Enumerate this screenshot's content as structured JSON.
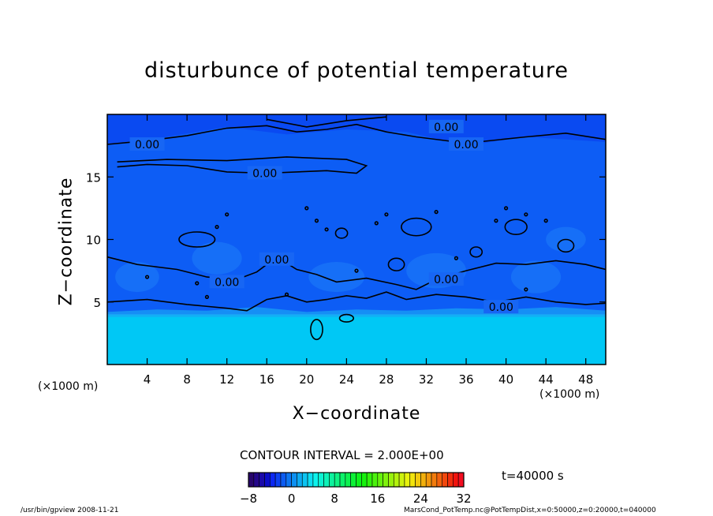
{
  "chart_data": {
    "type": "heatmap",
    "title": "disturbunce of potential temperature",
    "xlabel": "X−coordinate",
    "ylabel": "Z−coordinate",
    "x_unit": "(×1000 m)",
    "z_unit": "(×1000 m)",
    "xlim": [
      0,
      50
    ],
    "ylim": [
      0,
      20
    ],
    "x_ticks": [
      4,
      8,
      12,
      16,
      20,
      24,
      28,
      32,
      36,
      40,
      44,
      48
    ],
    "y_ticks": [
      5,
      10,
      15
    ],
    "contour_interval": "CONTOUR INTERVAL = 2.000E+00",
    "contour_labels": [
      "0.00",
      "0.00",
      "0.00",
      "0.00",
      "0.00",
      "0.00",
      "0.00",
      "0.00"
    ],
    "colorbar": {
      "ticks": [
        -8,
        0,
        8,
        16,
        24,
        32
      ],
      "range": [
        -8,
        32
      ]
    },
    "time": "t=40000 s",
    "layers": [
      {
        "z_min": 0,
        "z_max": 4,
        "value": 1.5
      },
      {
        "z_min": 4,
        "z_max": 20,
        "value": -0.5
      }
    ],
    "grid": false,
    "colors": {
      "upper_region": "#0d5df5",
      "lower_region": "#00c8f5",
      "upper_band": "#0b46f0"
    }
  },
  "footer": {
    "left": "/usr/bin/gpview   2008-11-21",
    "right": "MarsCond_PotTemp.nc@PotTempDist,x=0:50000,z=0:20000,t=040000"
  }
}
